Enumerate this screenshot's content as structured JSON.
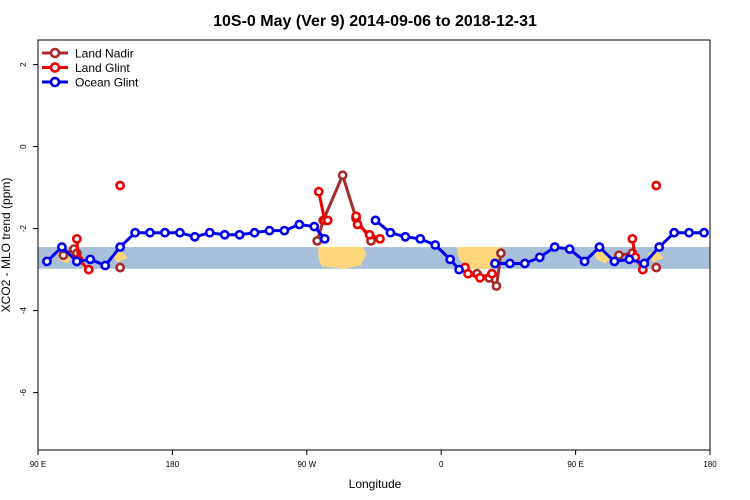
{
  "chart_data": {
    "type": "line",
    "title": "10S-0 May (Ver 9)   2014-09-06 to 2018-12-31",
    "xlabel": "Longitude",
    "ylabel": "XCO2 - MLO trend (ppm)",
    "xlim": [
      90,
      540
    ],
    "ylim": [
      -7.4,
      2.6
    ],
    "x_ticks": [
      {
        "x": 90,
        "label": "90 E"
      },
      {
        "x": 180,
        "label": "180"
      },
      {
        "x": 270,
        "label": "90 W"
      },
      {
        "x": 360,
        "label": "0"
      },
      {
        "x": 450,
        "label": "90 E"
      },
      {
        "x": 540,
        "label": "180"
      }
    ],
    "y_ticks": [
      {
        "y": 2,
        "label": "2"
      },
      {
        "y": 0,
        "label": "0"
      },
      {
        "y": -2,
        "label": "-2"
      },
      {
        "y": -4,
        "label": "-4"
      },
      {
        "y": -6,
        "label": "-6"
      }
    ],
    "latitude_band": {
      "ymin": -2.98,
      "ymax": -2.45,
      "color": "#a8bfdc",
      "land_color": "#ffd77a"
    },
    "grid": false,
    "legend_position": "top-left",
    "series": [
      {
        "name": "Land Nadir",
        "color": "#a52a2a",
        "segments": [
          [
            [
              107,
              -2.65
            ],
            [
              114,
              -2.5
            ],
            [
              116,
              -2.6
            ]
          ],
          [
            [
              145,
              -2.95
            ]
          ],
          [
            [
              277,
              -2.3
            ],
            [
              281,
              -1.8
            ],
            [
              294,
              -0.7
            ],
            [
              303,
              -1.75
            ],
            [
              313,
              -2.3
            ]
          ],
          [
            [
              384,
              -3.1
            ],
            [
              392,
              -3.2
            ],
            [
              397,
              -3.4
            ],
            [
              400,
              -2.6
            ]
          ],
          [
            [
              479,
              -2.65
            ],
            [
              488,
              -2.6
            ]
          ],
          [
            [
              504,
              -2.95
            ]
          ]
        ]
      },
      {
        "name": "Land Glint",
        "color": "#ee0000",
        "segments": [
          [
            [
              116,
              -2.25
            ],
            [
              117,
              -2.75
            ],
            [
              124,
              -3.0
            ]
          ],
          [
            [
              145,
              -0.95
            ]
          ],
          [
            [
              278,
              -1.1
            ],
            [
              282,
              -1.8
            ],
            [
              284,
              -1.8
            ]
          ],
          [
            [
              303,
              -1.7
            ],
            [
              304,
              -1.9
            ],
            [
              312,
              -2.15
            ],
            [
              319,
              -2.25
            ]
          ],
          [
            [
              376,
              -2.95
            ],
            [
              378,
              -3.1
            ],
            [
              386,
              -3.2
            ],
            [
              394,
              -3.1
            ]
          ],
          [
            [
              488,
              -2.25
            ],
            [
              490,
              -2.7
            ],
            [
              495,
              -3.0
            ]
          ],
          [
            [
              504,
              -0.95
            ]
          ]
        ]
      },
      {
        "name": "Ocean Glint",
        "color": "#0000ee",
        "segments": [
          [
            [
              96,
              -2.8
            ],
            [
              106,
              -2.45
            ],
            [
              116,
              -2.8
            ],
            [
              125,
              -2.75
            ],
            [
              135,
              -2.9
            ],
            [
              145,
              -2.45
            ],
            [
              155,
              -2.1
            ],
            [
              165,
              -2.1
            ],
            [
              175,
              -2.1
            ],
            [
              185,
              -2.1
            ],
            [
              195,
              -2.2
            ],
            [
              205,
              -2.1
            ],
            [
              215,
              -2.15
            ],
            [
              225,
              -2.15
            ],
            [
              235,
              -2.1
            ],
            [
              245,
              -2.05
            ],
            [
              255,
              -2.05
            ],
            [
              265,
              -1.9
            ],
            [
              275,
              -1.95
            ],
            [
              282,
              -2.25
            ]
          ],
          [
            [
              316,
              -1.8
            ],
            [
              326,
              -2.1
            ],
            [
              336,
              -2.2
            ],
            [
              346,
              -2.25
            ],
            [
              356,
              -2.4
            ],
            [
              366,
              -2.75
            ],
            [
              372,
              -3.0
            ]
          ],
          [
            [
              396,
              -2.85
            ],
            [
              406,
              -2.85
            ],
            [
              416,
              -2.85
            ],
            [
              426,
              -2.7
            ],
            [
              436,
              -2.45
            ],
            [
              446,
              -2.5
            ],
            [
              456,
              -2.8
            ],
            [
              466,
              -2.45
            ],
            [
              476,
              -2.8
            ],
            [
              486,
              -2.75
            ],
            [
              496,
              -2.85
            ],
            [
              506,
              -2.45
            ],
            [
              516,
              -2.1
            ],
            [
              526,
              -2.1
            ],
            [
              536,
              -2.1
            ]
          ]
        ]
      }
    ]
  }
}
